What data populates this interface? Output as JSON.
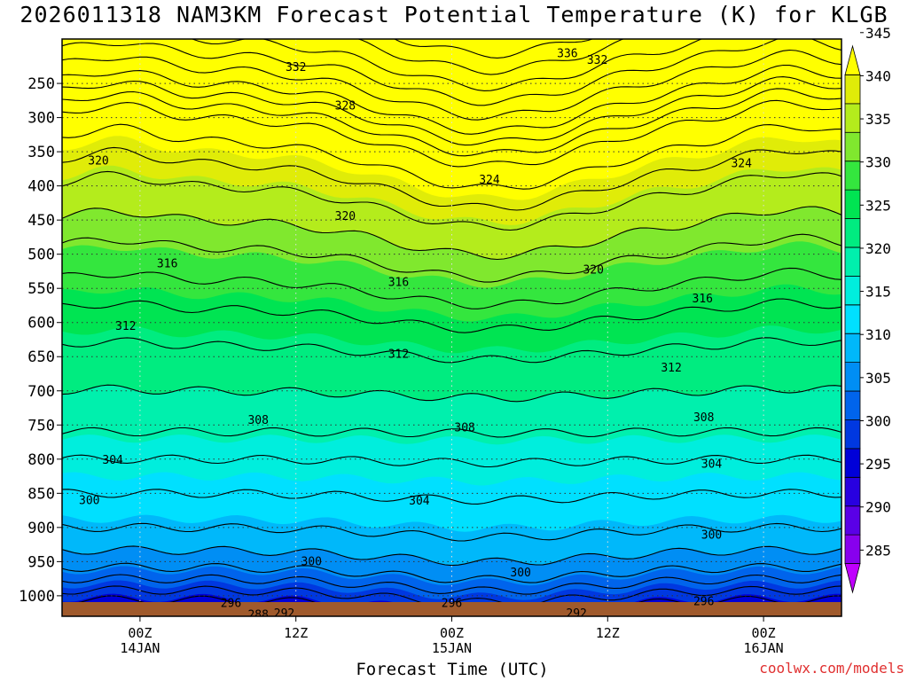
{
  "chart_data": {
    "type": "heatmap",
    "title": "2026011318 NAM3KM Forecast Potential Temperature (K) for KLGB",
    "xlabel": "Forecast Time (UTC)",
    "credit": "coolwx.com/models",
    "y_ticks": [
      "250",
      "300",
      "350",
      "400",
      "450",
      "500",
      "550",
      "600",
      "650",
      "700",
      "750",
      "800",
      "850",
      "900",
      "950",
      "1000"
    ],
    "y_values": [
      250,
      300,
      350,
      400,
      450,
      500,
      550,
      600,
      650,
      700,
      750,
      800,
      850,
      900,
      950,
      1000
    ],
    "y_range": [
      185,
      1030
    ],
    "x_ticks": [
      {
        "time": "00Z",
        "date": "14JAN",
        "year": "2026",
        "hour": 6
      },
      {
        "time": "12Z",
        "date": "",
        "year": "",
        "hour": 18
      },
      {
        "time": "00Z",
        "date": "15JAN",
        "year": "",
        "hour": 30
      },
      {
        "time": "12Z",
        "date": "",
        "year": "",
        "hour": 42
      },
      {
        "time": "00Z",
        "date": "16JAN",
        "year": "",
        "hour": 54
      }
    ],
    "x_range_hours": [
      0,
      60
    ],
    "colorbar": {
      "labels": [
        "285",
        "290",
        "295",
        "300",
        "305",
        "310",
        "315",
        "320",
        "325",
        "330",
        "335",
        "340",
        "345"
      ],
      "values": [
        285,
        290,
        295,
        300,
        305,
        310,
        315,
        320,
        325,
        330,
        335,
        340,
        345
      ],
      "colors": [
        "#c000ff",
        "#8800ee",
        "#5a00e6",
        "#2800e0",
        "#0000d8",
        "#0038e0",
        "#0064ec",
        "#008ef4",
        "#00b8fa",
        "#00e0ff",
        "#00eedd",
        "#00f0ad",
        "#00ec80",
        "#00e452",
        "#34e63e",
        "#80e82e",
        "#b4ec1c",
        "#e0ec08",
        "#ffff00"
      ]
    },
    "theta_profile": [
      {
        "p": 185,
        "theta": 340
      },
      {
        "p": 250,
        "theta": 334
      },
      {
        "p": 300,
        "theta": 328
      },
      {
        "p": 350,
        "theta": 325
      },
      {
        "p": 400,
        "theta": 322
      },
      {
        "p": 450,
        "theta": 320
      },
      {
        "p": 500,
        "theta": 317.5
      },
      {
        "p": 550,
        "theta": 315.5
      },
      {
        "p": 600,
        "theta": 313
      },
      {
        "p": 650,
        "theta": 311.5
      },
      {
        "p": 700,
        "theta": 310
      },
      {
        "p": 750,
        "theta": 308.5
      },
      {
        "p": 800,
        "theta": 306
      },
      {
        "p": 850,
        "theta": 304
      },
      {
        "p": 900,
        "theta": 302
      },
      {
        "p": 950,
        "theta": 299
      },
      {
        "p": 1000,
        "theta": 293
      },
      {
        "p": 1030,
        "theta": 288
      }
    ],
    "contour_labels": [
      {
        "text": "336",
        "hour": 38.9,
        "p": 205
      },
      {
        "text": "332",
        "hour": 18.0,
        "p": 225
      },
      {
        "text": "332",
        "hour": 41.2,
        "p": 215
      },
      {
        "text": "328",
        "hour": 21.8,
        "p": 282
      },
      {
        "text": "324",
        "hour": 32.9,
        "p": 390
      },
      {
        "text": "324",
        "hour": 52.3,
        "p": 366
      },
      {
        "text": "320",
        "hour": 2.8,
        "p": 362
      },
      {
        "text": "320",
        "hour": 21.8,
        "p": 443
      },
      {
        "text": "320",
        "hour": 40.9,
        "p": 522
      },
      {
        "text": "316",
        "hour": 8.1,
        "p": 513
      },
      {
        "text": "316",
        "hour": 25.9,
        "p": 540
      },
      {
        "text": "316",
        "hour": 49.3,
        "p": 564
      },
      {
        "text": "312",
        "hour": 4.9,
        "p": 604
      },
      {
        "text": "312",
        "hour": 25.9,
        "p": 645
      },
      {
        "text": "312",
        "hour": 46.9,
        "p": 665
      },
      {
        "text": "308",
        "hour": 15.1,
        "p": 742
      },
      {
        "text": "308",
        "hour": 31.0,
        "p": 753
      },
      {
        "text": "308",
        "hour": 49.4,
        "p": 738
      },
      {
        "text": "304",
        "hour": 3.9,
        "p": 800
      },
      {
        "text": "304",
        "hour": 27.5,
        "p": 860
      },
      {
        "text": "304",
        "hour": 50.0,
        "p": 806
      },
      {
        "text": "300",
        "hour": 2.1,
        "p": 859
      },
      {
        "text": "300",
        "hour": 19.2,
        "p": 949
      },
      {
        "text": "300",
        "hour": 35.3,
        "p": 965
      },
      {
        "text": "300",
        "hour": 50.0,
        "p": 910
      },
      {
        "text": "296",
        "hour": 13.0,
        "p": 1010
      },
      {
        "text": "296",
        "hour": 30.0,
        "p": 1010
      },
      {
        "text": "296",
        "hour": 49.4,
        "p": 1007
      },
      {
        "text": "292",
        "hour": 17.1,
        "p": 1025
      },
      {
        "text": "292",
        "hour": 39.6,
        "p": 1025
      },
      {
        "text": "288",
        "hour": 15.1,
        "p": 1027
      }
    ],
    "ground_color": "#a05a2c"
  }
}
